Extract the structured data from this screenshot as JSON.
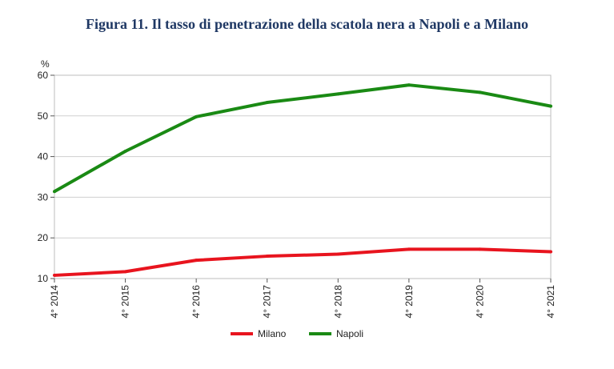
{
  "title": "Figura 11. Il tasso di penetrazione della scatola nera a Napoli e a Milano",
  "chart_data": {
    "type": "line",
    "title": "Figura 11. Il tasso di penetrazione della scatola nera a Napoli e a Milano",
    "ylabel": "%",
    "xlabel": "",
    "ylim": [
      10,
      60
    ],
    "yticks": [
      10,
      20,
      30,
      40,
      50,
      60
    ],
    "grid": true,
    "legend_position": "bottom",
    "categories": [
      "4° 2014",
      "4° 2015",
      "4° 2016",
      "4° 2017",
      "4° 2018",
      "4° 2019",
      "4° 2020",
      "4° 2021"
    ],
    "series": [
      {
        "name": "Milano",
        "color": "#E8141E",
        "values": [
          10.8,
          11.7,
          14.5,
          15.5,
          16.0,
          17.2,
          17.2,
          16.6
        ]
      },
      {
        "name": "Napoli",
        "color": "#1A8A14",
        "values": [
          31.4,
          41.3,
          49.8,
          53.3,
          55.4,
          57.6,
          55.8,
          52.4
        ]
      }
    ]
  }
}
